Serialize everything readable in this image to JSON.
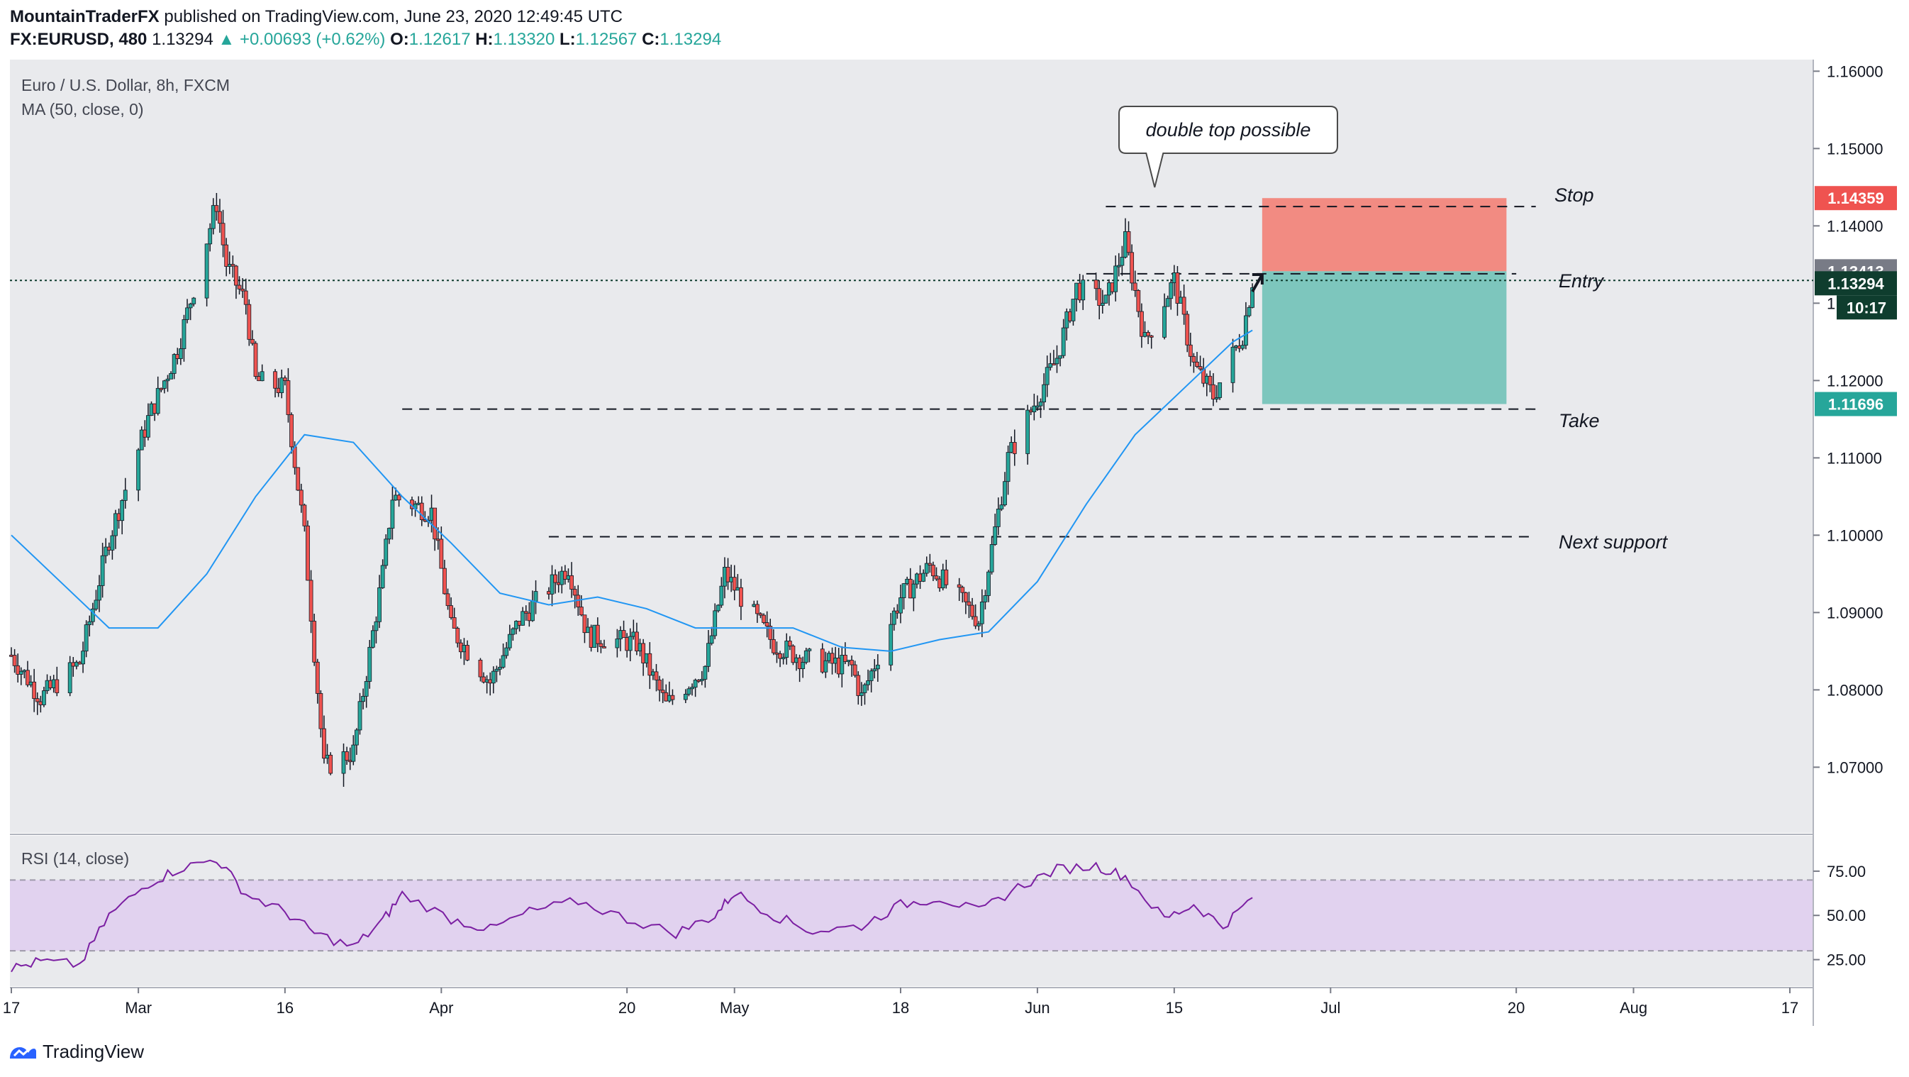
{
  "header": {
    "author": "MountainTraderFX",
    "published_text": "published on TradingView.com, June 23, 2020 12:49:45 UTC",
    "symbol": "FX:EURUSD, 480",
    "last": "1.13294",
    "arrow": "▲",
    "change": "+0.00693 (+0.62%)",
    "o_label": "O:",
    "o_value": "1.12617",
    "h_label": "H:",
    "h_value": "1.13320",
    "l_label": "L:",
    "l_value": "1.12567",
    "c_label": "C:",
    "c_value": "1.13294"
  },
  "legend": {
    "instrument": "Euro / U.S. Dollar, 8h, FXCM",
    "ma": "MA (50, close, 0)",
    "rsi": "RSI (14, close)"
  },
  "footer": {
    "brand": "TradingView",
    "logo_icon": "tradingview-logo-icon"
  },
  "colors": {
    "up": "#26a69a",
    "down": "#ef5350",
    "ma": "#2196f3",
    "rsi": "#7b1fa2",
    "stop_zone": "#f28b82",
    "profit_zone": "#7dc6bd",
    "pane_bg": "#e9eaed",
    "rsi_band": "#e1d2ef",
    "last_price": "#0f3d2e",
    "entry_tag": "#787b86",
    "take_tag": "#26a69a",
    "stop_tag": "#ef5350"
  },
  "annotations": {
    "callout": "double top possible",
    "stop": "Stop",
    "entry": "Entry",
    "take": "Take",
    "next_support": "Next support"
  },
  "price_tags": {
    "stop": "1.14359",
    "entry": "1.13413",
    "last": "1.13294",
    "countdown": "10:17",
    "take": "1.11696"
  },
  "chart_data": {
    "type": "candlestick",
    "symbol": "FX:EURUSD",
    "timeframe": "8h",
    "ylim": [
      1.0615,
      1.1615
    ],
    "price_ticks": [
      "1.16000",
      "1.15000",
      "1.14000",
      "1.13000",
      "1.12000",
      "1.11000",
      "1.10000",
      "1.09000",
      "1.08000",
      "1.07000"
    ],
    "x_ticks": [
      "17",
      "Mar",
      "16",
      "Apr",
      "20",
      "May",
      "18",
      "Jun",
      "15",
      "Jul",
      "20",
      "Aug",
      "17"
    ],
    "x_tick_dates": [
      "2020-02-17",
      "2020-03-01",
      "2020-03-16",
      "2020-04-01",
      "2020-04-20",
      "2020-05-01",
      "2020-05-18",
      "2020-06-01",
      "2020-06-15",
      "2020-07-01",
      "2020-07-20",
      "2020-08-01",
      "2020-08-17"
    ],
    "x_range": [
      "2020-02-17",
      "2020-08-17"
    ],
    "close_path": [
      [
        "2020-02-17",
        1.0845
      ],
      [
        "2020-02-20",
        1.079
      ],
      [
        "2020-02-24",
        1.0835
      ],
      [
        "2020-02-27",
        1.0995
      ],
      [
        "2020-03-02",
        1.115
      ],
      [
        "2020-03-05",
        1.124
      ],
      [
        "2020-03-09",
        1.143
      ],
      [
        "2020-03-10",
        1.135
      ],
      [
        "2020-03-12",
        1.13
      ],
      [
        "2020-03-13",
        1.12
      ],
      [
        "2020-03-16",
        1.119
      ],
      [
        "2020-03-18",
        1.1
      ],
      [
        "2020-03-20",
        1.07
      ],
      [
        "2020-03-23",
        1.072
      ],
      [
        "2020-03-26",
        1.095
      ],
      [
        "2020-03-27",
        1.105
      ],
      [
        "2020-03-31",
        1.103
      ],
      [
        "2020-04-02",
        1.088
      ],
      [
        "2020-04-06",
        1.081
      ],
      [
        "2020-04-09",
        1.089
      ],
      [
        "2020-04-14",
        1.096
      ],
      [
        "2020-04-16",
        1.087
      ],
      [
        "2020-04-21",
        1.086
      ],
      [
        "2020-04-24",
        1.078
      ],
      [
        "2020-04-28",
        1.083
      ],
      [
        "2020-04-30",
        1.095
      ],
      [
        "2020-05-05",
        1.086
      ],
      [
        "2020-05-08",
        1.084
      ],
      [
        "2020-05-13",
        1.083
      ],
      [
        "2020-05-14",
        1.079
      ],
      [
        "2020-05-18",
        1.092
      ],
      [
        "2020-05-21",
        1.096
      ],
      [
        "2020-05-26",
        1.089
      ],
      [
        "2020-05-29",
        1.11
      ],
      [
        "2020-06-03",
        1.123
      ],
      [
        "2020-06-05",
        1.132
      ],
      [
        "2020-06-08",
        1.13
      ],
      [
        "2020-06-10",
        1.138
      ],
      [
        "2020-06-12",
        1.125
      ],
      [
        "2020-06-15",
        1.133
      ],
      [
        "2020-06-17",
        1.122
      ],
      [
        "2020-06-19",
        1.118
      ],
      [
        "2020-06-22",
        1.126
      ],
      [
        "2020-06-23",
        1.13294
      ]
    ],
    "series": [
      {
        "name": "MA (50, close, 0)",
        "points": [
          [
            "2020-02-17",
            1.1
          ],
          [
            "2020-02-22",
            1.094
          ],
          [
            "2020-02-27",
            1.088
          ],
          [
            "2020-03-03",
            1.088
          ],
          [
            "2020-03-08",
            1.095
          ],
          [
            "2020-03-13",
            1.105
          ],
          [
            "2020-03-18",
            1.113
          ],
          [
            "2020-03-23",
            1.112
          ],
          [
            "2020-03-28",
            1.105
          ],
          [
            "2020-04-02",
            1.099
          ],
          [
            "2020-04-07",
            1.0925
          ],
          [
            "2020-04-12",
            1.091
          ],
          [
            "2020-04-17",
            1.092
          ],
          [
            "2020-04-22",
            1.0905
          ],
          [
            "2020-04-27",
            1.088
          ],
          [
            "2020-05-02",
            1.088
          ],
          [
            "2020-05-07",
            1.088
          ],
          [
            "2020-05-12",
            1.0855
          ],
          [
            "2020-05-17",
            1.085
          ],
          [
            "2020-05-22",
            1.0865
          ],
          [
            "2020-05-27",
            1.0875
          ],
          [
            "2020-06-01",
            1.094
          ],
          [
            "2020-06-06",
            1.104
          ],
          [
            "2020-06-11",
            1.113
          ],
          [
            "2020-06-16",
            1.119
          ],
          [
            "2020-06-21",
            1.125
          ],
          [
            "2020-06-23",
            1.1265
          ]
        ]
      },
      {
        "name": "RSI (14, close)",
        "ylim": [
          10,
          95
        ],
        "ticks": [
          "75.00",
          "50.00",
          "25.00"
        ],
        "band": [
          30,
          70
        ],
        "points": [
          [
            "2020-02-17",
            20
          ],
          [
            "2020-02-20",
            24
          ],
          [
            "2020-02-24",
            22
          ],
          [
            "2020-02-27",
            50
          ],
          [
            "2020-03-02",
            68
          ],
          [
            "2020-03-05",
            76
          ],
          [
            "2020-03-09",
            82
          ],
          [
            "2020-03-12",
            62
          ],
          [
            "2020-03-16",
            52
          ],
          [
            "2020-03-19",
            40
          ],
          [
            "2020-03-23",
            32
          ],
          [
            "2020-03-26",
            47
          ],
          [
            "2020-03-28",
            62
          ],
          [
            "2020-04-02",
            48
          ],
          [
            "2020-04-06",
            42
          ],
          [
            "2020-04-10",
            52
          ],
          [
            "2020-04-15",
            58
          ],
          [
            "2020-04-20",
            48
          ],
          [
            "2020-04-25",
            40
          ],
          [
            "2020-04-29",
            50
          ],
          [
            "2020-05-01",
            63
          ],
          [
            "2020-05-05",
            50
          ],
          [
            "2020-05-09",
            41
          ],
          [
            "2020-05-14",
            44
          ],
          [
            "2020-05-18",
            56
          ],
          [
            "2020-05-22",
            60
          ],
          [
            "2020-05-26",
            52
          ],
          [
            "2020-05-30",
            66
          ],
          [
            "2020-06-03",
            76
          ],
          [
            "2020-06-07",
            78
          ],
          [
            "2020-06-10",
            72
          ],
          [
            "2020-06-14",
            48
          ],
          [
            "2020-06-17",
            56
          ],
          [
            "2020-06-20",
            44
          ],
          [
            "2020-06-23",
            60
          ]
        ]
      }
    ],
    "levels": [
      {
        "label": "Stop",
        "price": 1.14359
      },
      {
        "label": "Entry",
        "price": 1.13413
      },
      {
        "label": "Take",
        "price": 1.11696
      },
      {
        "label": "Next support",
        "price": 1.1
      },
      {
        "label": "last",
        "price": 1.13294
      }
    ],
    "position": {
      "type": "short",
      "entry": 1.13413,
      "stop": 1.14359,
      "target": 1.11696
    }
  }
}
